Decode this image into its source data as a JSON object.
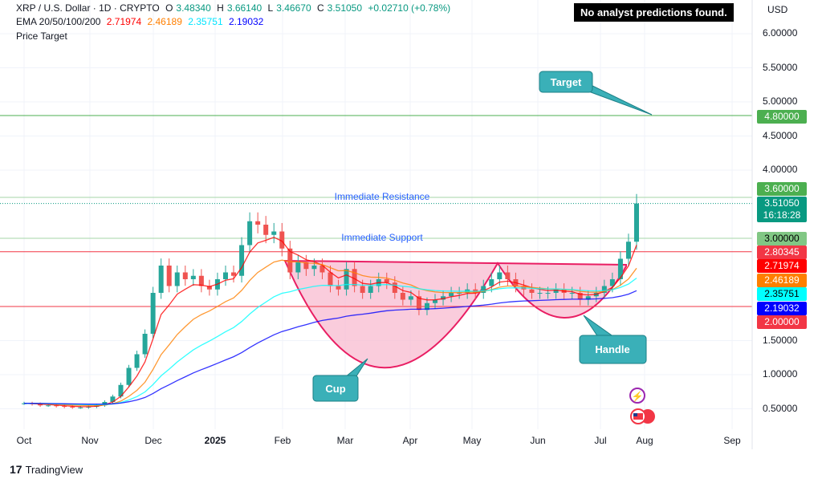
{
  "header": {
    "symbol": "XRP / U.S. Dollar · 1D · CRYPTO",
    "o_label": "O",
    "o": "3.48340",
    "h_label": "H",
    "h": "3.66140",
    "l_label": "L",
    "l": "3.46670",
    "c_label": "C",
    "c": "3.51050",
    "change": "+0.02710 (+0.78%)",
    "ema_label": "EMA 20/50/100/200",
    "ema20": "2.71974",
    "ema50": "2.46189",
    "ema100": "2.35751",
    "ema200": "2.19032",
    "indicator2": "Price Target"
  },
  "badge": "No analyst predictions found.",
  "currency": "USD",
  "brand": "TradingView",
  "colors": {
    "up": "#26a69a",
    "down": "#ef5350",
    "ema20": "#ff0000",
    "ema50": "#ff7f00",
    "ema100": "#00ffff",
    "ema200": "#0000ff",
    "cup": "#f8bbd0"
  },
  "price_labels": [
    {
      "text": "4.80000",
      "bg": "#4caf50",
      "fg": "#fff"
    },
    {
      "text": "3.60000",
      "bg": "#4caf50",
      "fg": "#fff"
    },
    {
      "text": "3.51050",
      "text2": "16:18:28",
      "bg": "#089981",
      "fg": "#fff"
    },
    {
      "text": "3.00000",
      "bg": "#81c784",
      "fg": "#000"
    },
    {
      "text": "2.80345",
      "bg": "#f23645",
      "fg": "#fff"
    },
    {
      "text": "2.71974",
      "bg": "#ff0000",
      "fg": "#fff"
    },
    {
      "text": "2.46189",
      "bg": "#ff7f00",
      "fg": "#fff"
    },
    {
      "text": "2.35751",
      "bg": "#00ffff",
      "fg": "#000"
    },
    {
      "text": "2.19032",
      "bg": "#0000ff",
      "fg": "#fff"
    },
    {
      "text": "2.00000",
      "bg": "#f23645",
      "fg": "#fff"
    }
  ],
  "annotations": {
    "target": "Target",
    "resistance": "Immediate Resistance",
    "support": "Immediate Support",
    "cup": "Cup",
    "handle": "Handle"
  },
  "chart_data": {
    "type": "candlestick",
    "title": "XRP / U.S. Dollar · 1D",
    "ylim": [
      0.5,
      6.0
    ],
    "yticks": [
      "6.00000",
      "5.50000",
      "5.00000",
      "4.50000",
      "4.00000",
      "1.50000",
      "1.00000",
      "0.50000"
    ],
    "ytick_values": [
      6.0,
      5.5,
      5.0,
      4.5,
      4.0,
      1.5,
      1.0,
      0.5
    ],
    "xticks": [
      "Oct",
      "Nov",
      "Dec",
      "2025",
      "Feb",
      "Mar",
      "Apr",
      "May",
      "Jun",
      "Jul",
      "Aug",
      "Sep"
    ],
    "levels": {
      "target": 4.8,
      "resistance": 3.6,
      "last": 3.5105,
      "support": 3.0,
      "red_upper": 2.80345,
      "red_lower": 2.0
    },
    "closes": [
      0.58,
      0.57,
      0.55,
      0.55,
      0.54,
      0.53,
      0.52,
      0.52,
      0.53,
      0.55,
      0.6,
      0.68,
      0.85,
      1.1,
      1.3,
      1.6,
      2.2,
      2.6,
      2.3,
      2.5,
      2.4,
      2.45,
      2.3,
      2.25,
      2.4,
      2.5,
      2.45,
      2.9,
      3.25,
      3.2,
      3.05,
      3.1,
      2.85,
      2.5,
      2.65,
      2.55,
      2.6,
      2.5,
      2.3,
      2.25,
      2.55,
      2.3,
      2.2,
      2.3,
      2.4,
      2.35,
      2.2,
      2.1,
      2.15,
      1.95,
      2.05,
      2.1,
      2.15,
      2.2,
      2.2,
      2.25,
      2.2,
      2.3,
      2.4,
      2.5,
      2.4,
      2.3,
      2.25,
      2.2,
      2.2,
      2.2,
      2.25,
      2.2,
      2.2,
      2.1,
      2.15,
      2.2,
      2.3,
      2.4,
      2.7,
      2.95,
      3.51
    ]
  }
}
